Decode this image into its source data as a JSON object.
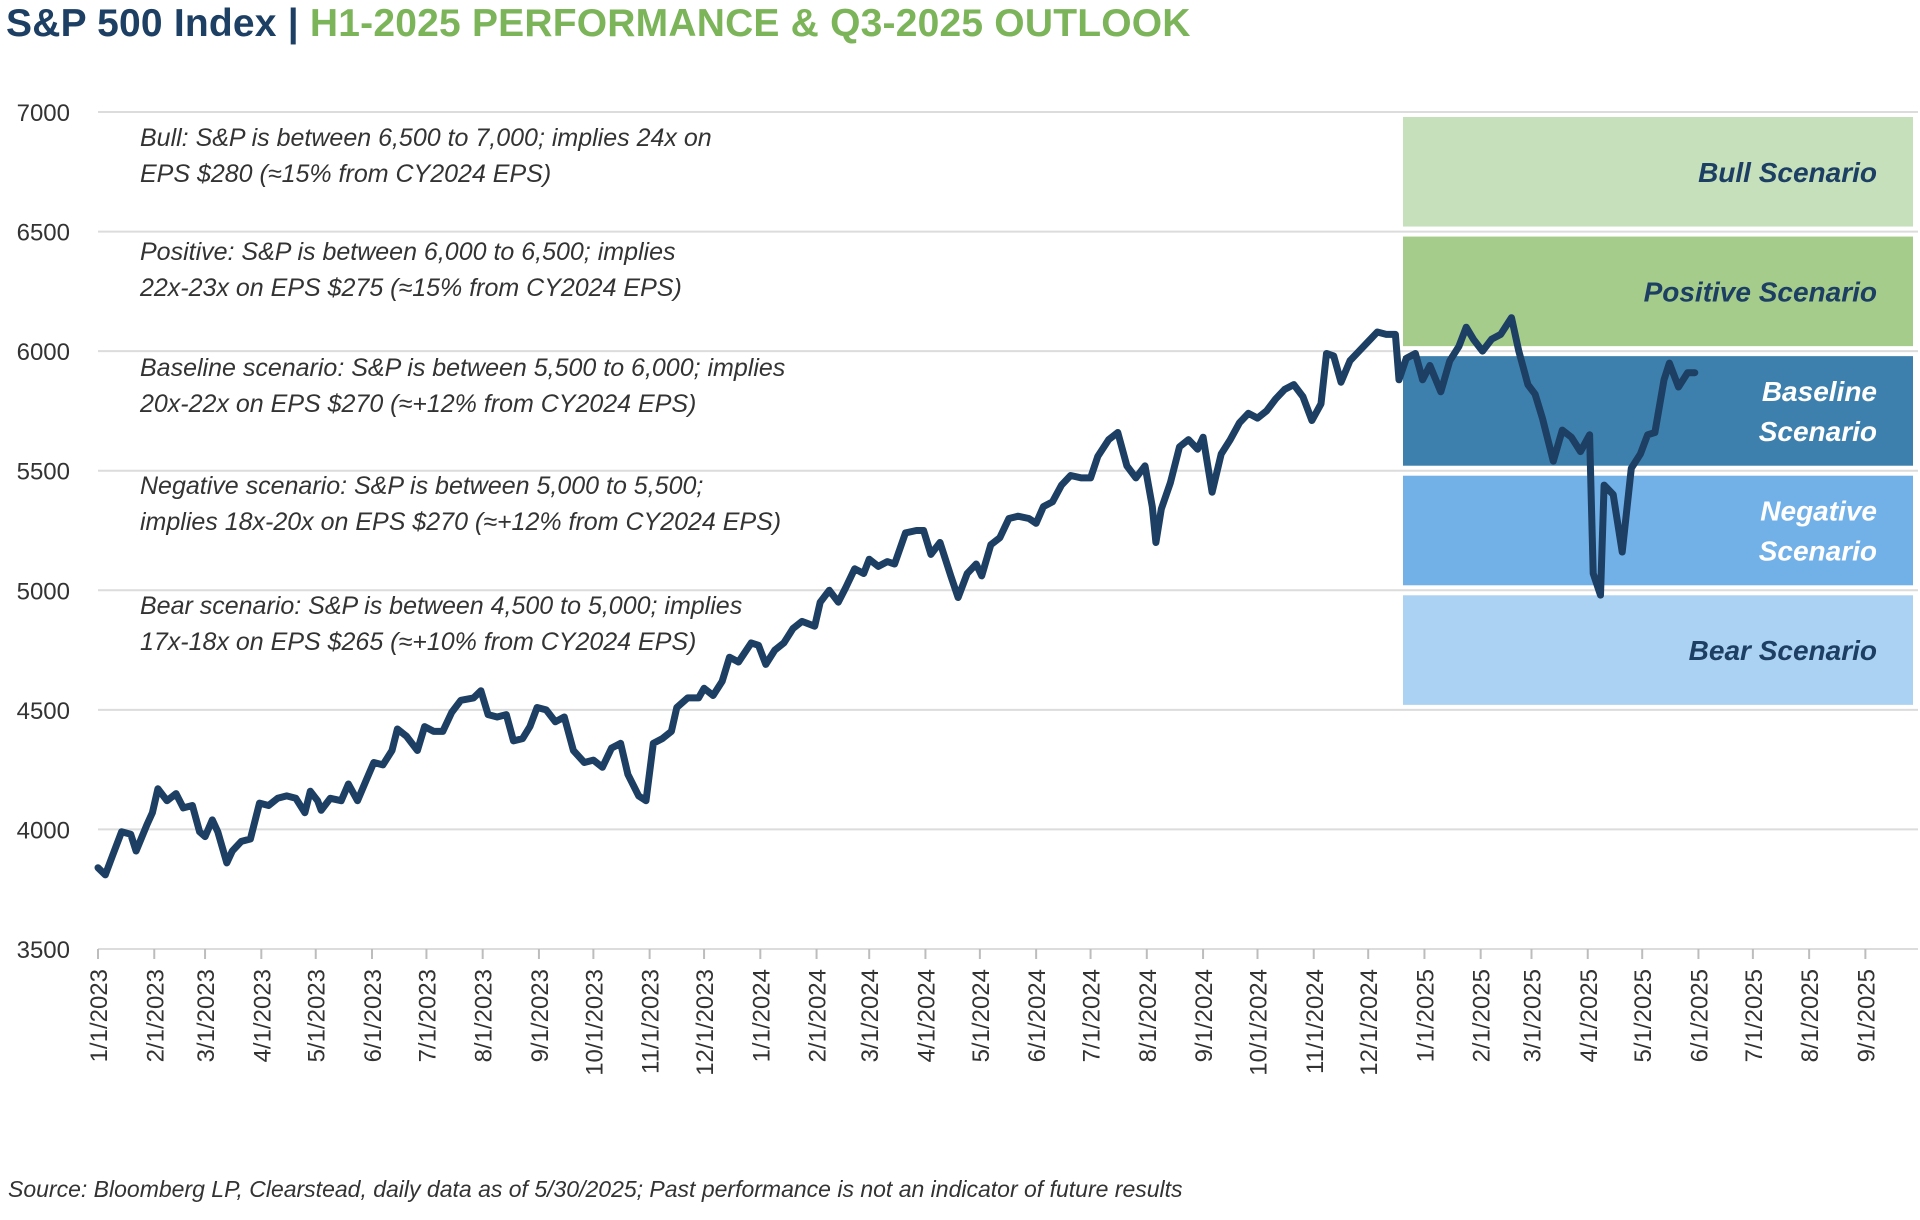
{
  "header": {
    "title_main": "S&P 500 Index",
    "title_sep": "|",
    "title_sub": "H1-2025 PERFORMANCE & Q3-2025 OUTLOOK"
  },
  "footer": {
    "source": "Source: Bloomberg LP, Clearstead, daily data as of 5/30/2025; Past performance is not an indicator of future results"
  },
  "colors": {
    "line": "#1c3f63",
    "grid": "#dcdcdc",
    "title_main": "#1c3f63",
    "title_sub": "#7cb45a"
  },
  "chart_data": {
    "type": "line",
    "title": "S&P 500 Index | H1-2025 PERFORMANCE & Q3-2025 OUTLOOK",
    "xlabel": "",
    "ylabel": "",
    "ylim": [
      3500,
      7000
    ],
    "yticks": [
      3500,
      4000,
      4500,
      5000,
      5500,
      6000,
      6500,
      7000
    ],
    "xlim": [
      "1/1/2023",
      "9/30/2025"
    ],
    "xticks": [
      "1/1/2023",
      "2/1/2023",
      "3/1/2023",
      "4/1/2023",
      "5/1/2023",
      "6/1/2023",
      "7/1/2023",
      "8/1/2023",
      "9/1/2023",
      "10/1/2023",
      "11/1/2023",
      "12/1/2023",
      "1/1/2024",
      "2/1/2024",
      "3/1/2024",
      "4/1/2024",
      "5/1/2024",
      "6/1/2024",
      "7/1/2024",
      "8/1/2024",
      "9/1/2024",
      "10/1/2024",
      "11/1/2024",
      "12/1/2024",
      "1/1/2025",
      "2/1/2025",
      "3/1/2025",
      "4/1/2025",
      "5/1/2025",
      "6/1/2025",
      "7/1/2025",
      "8/1/2025",
      "9/1/2025"
    ],
    "grid": true,
    "legend": "none",
    "series": [
      {
        "points": [
          [
            "1/1/2023",
            3840
          ],
          [
            "1/5/2023",
            3810
          ],
          [
            "1/9/2023",
            3890
          ],
          [
            "1/14/2023",
            3990
          ],
          [
            "1/19/2023",
            3980
          ],
          [
            "1/22/2023",
            3910
          ],
          [
            "1/28/2023",
            4020
          ],
          [
            "1/31/2023",
            4070
          ],
          [
            "2/3/2023",
            4170
          ],
          [
            "2/8/2023",
            4120
          ],
          [
            "2/13/2023",
            4150
          ],
          [
            "2/17/2023",
            4090
          ],
          [
            "2/22/2023",
            4100
          ],
          [
            "2/26/2023",
            3990
          ],
          [
            "3/1/2023",
            3970
          ],
          [
            "3/5/2023",
            4040
          ],
          [
            "3/8/2023",
            3990
          ],
          [
            "3/13/2023",
            3860
          ],
          [
            "3/16/2023",
            3910
          ],
          [
            "3/21/2023",
            3950
          ],
          [
            "3/26/2023",
            3960
          ],
          [
            "3/31/2023",
            4110
          ],
          [
            "4/5/2023",
            4100
          ],
          [
            "4/10/2023",
            4130
          ],
          [
            "4/15/2023",
            4140
          ],
          [
            "4/20/2023",
            4130
          ],
          [
            "4/25/2023",
            4070
          ],
          [
            "4/28/2023",
            4160
          ],
          [
            "5/2/2023",
            4120
          ],
          [
            "5/4/2023",
            4080
          ],
          [
            "5/9/2023",
            4130
          ],
          [
            "5/15/2023",
            4120
          ],
          [
            "5/19/2023",
            4190
          ],
          [
            "5/24/2023",
            4120
          ],
          [
            "5/29/2023",
            4210
          ],
          [
            "6/2/2023",
            4280
          ],
          [
            "6/7/2023",
            4270
          ],
          [
            "6/12/2023",
            4330
          ],
          [
            "6/15/2023",
            4420
          ],
          [
            "6/20/2023",
            4390
          ],
          [
            "6/26/2023",
            4330
          ],
          [
            "6/30/2023",
            4430
          ],
          [
            "7/5/2023",
            4410
          ],
          [
            "7/10/2023",
            4410
          ],
          [
            "7/15/2023",
            4490
          ],
          [
            "7/20/2023",
            4540
          ],
          [
            "7/27/2023",
            4550
          ],
          [
            "7/31/2023",
            4580
          ],
          [
            "8/4/2023",
            4480
          ],
          [
            "8/9/2023",
            4470
          ],
          [
            "8/14/2023",
            4480
          ],
          [
            "8/18/2023",
            4370
          ],
          [
            "8/23/2023",
            4380
          ],
          [
            "8/27/2023",
            4430
          ],
          [
            "8/31/2023",
            4510
          ],
          [
            "9/5/2023",
            4500
          ],
          [
            "9/10/2023",
            4450
          ],
          [
            "9/15/2023",
            4470
          ],
          [
            "9/20/2023",
            4330
          ],
          [
            "9/26/2023",
            4280
          ],
          [
            "10/1/2023",
            4290
          ],
          [
            "10/6/2023",
            4260
          ],
          [
            "10/11/2023",
            4340
          ],
          [
            "10/16/2023",
            4360
          ],
          [
            "10/20/2023",
            4230
          ],
          [
            "10/26/2023",
            4140
          ],
          [
            "10/30/2023",
            4120
          ],
          [
            "11/3/2023",
            4360
          ],
          [
            "11/8/2023",
            4380
          ],
          [
            "11/13/2023",
            4410
          ],
          [
            "11/16/2023",
            4510
          ],
          [
            "11/22/2023",
            4550
          ],
          [
            "11/28/2023",
            4550
          ],
          [
            "12/1/2023",
            4590
          ],
          [
            "12/6/2023",
            4560
          ],
          [
            "12/11/2023",
            4620
          ],
          [
            "12/15/2023",
            4720
          ],
          [
            "12/20/2023",
            4700
          ],
          [
            "12/27/2023",
            4780
          ],
          [
            "12/31/2023",
            4770
          ],
          [
            "1/4/2024",
            4690
          ],
          [
            "1/9/2024",
            4750
          ],
          [
            "1/14/2024",
            4780
          ],
          [
            "1/19/2024",
            4840
          ],
          [
            "1/24/2024",
            4870
          ],
          [
            "1/31/2024",
            4850
          ],
          [
            "2/3/2024",
            4950
          ],
          [
            "2/8/2024",
            5000
          ],
          [
            "2/13/2024",
            4950
          ],
          [
            "2/17/2024",
            5010
          ],
          [
            "2/22/2024",
            5090
          ],
          [
            "2/27/2024",
            5070
          ],
          [
            "3/1/2024",
            5130
          ],
          [
            "3/6/2024",
            5100
          ],
          [
            "3/11/2024",
            5120
          ],
          [
            "3/15/2024",
            5110
          ],
          [
            "3/21/2024",
            5240
          ],
          [
            "3/27/2024",
            5250
          ],
          [
            "3/31/2024",
            5250
          ],
          [
            "4/4/2024",
            5150
          ],
          [
            "4/9/2024",
            5200
          ],
          [
            "4/15/2024",
            5060
          ],
          [
            "4/19/2024",
            4970
          ],
          [
            "4/24/2024",
            5070
          ],
          [
            "4/29/2024",
            5110
          ],
          [
            "5/2/2024",
            5060
          ],
          [
            "5/7/2024",
            5190
          ],
          [
            "5/12/2024",
            5220
          ],
          [
            "5/17/2024",
            5300
          ],
          [
            "5/22/2024",
            5310
          ],
          [
            "5/28/2024",
            5300
          ],
          [
            "6/1/2024",
            5280
          ],
          [
            "6/5/2024",
            5350
          ],
          [
            "6/10/2024",
            5370
          ],
          [
            "6/15/2024",
            5440
          ],
          [
            "6/20/2024",
            5480
          ],
          [
            "6/26/2024",
            5470
          ],
          [
            "7/1/2024",
            5470
          ],
          [
            "7/5/2024",
            5560
          ],
          [
            "7/11/2024",
            5630
          ],
          [
            "7/16/2024",
            5660
          ],
          [
            "7/21/2024",
            5520
          ],
          [
            "7/26/2024",
            5470
          ],
          [
            "7/31/2024",
            5520
          ],
          [
            "8/4/2024",
            5350
          ],
          [
            "8/6/2024",
            5200
          ],
          [
            "8/9/2024",
            5340
          ],
          [
            "8/14/2024",
            5450
          ],
          [
            "8/19/2024",
            5600
          ],
          [
            "8/24/2024",
            5630
          ],
          [
            "8/29/2024",
            5590
          ],
          [
            "9/1/2024",
            5640
          ],
          [
            "9/6/2024",
            5410
          ],
          [
            "9/11/2024",
            5570
          ],
          [
            "9/16/2024",
            5630
          ],
          [
            "9/21/2024",
            5700
          ],
          [
            "9/26/2024",
            5740
          ],
          [
            "10/1/2024",
            5720
          ],
          [
            "10/6/2024",
            5750
          ],
          [
            "10/11/2024",
            5800
          ],
          [
            "10/16/2024",
            5840
          ],
          [
            "10/21/2024",
            5860
          ],
          [
            "10/26/2024",
            5810
          ],
          [
            "10/31/2024",
            5710
          ],
          [
            "11/5/2024",
            5780
          ],
          [
            "11/8/2024",
            5990
          ],
          [
            "11/12/2024",
            5980
          ],
          [
            "11/16/2024",
            5870
          ],
          [
            "11/21/2024",
            5960
          ],
          [
            "11/26/2024",
            6000
          ],
          [
            "12/1/2024",
            6040
          ],
          [
            "12/6/2024",
            6080
          ],
          [
            "12/11/2024",
            6070
          ],
          [
            "12/16/2024",
            6070
          ],
          [
            "12/18/2024",
            5880
          ],
          [
            "12/22/2024",
            5970
          ],
          [
            "12/27/2024",
            5990
          ],
          [
            "12/31/2024",
            5880
          ],
          [
            "1/4/2025",
            5940
          ],
          [
            "1/10/2025",
            5830
          ],
          [
            "1/15/2025",
            5960
          ],
          [
            "1/20/2025",
            6020
          ],
          [
            "1/24/2025",
            6100
          ],
          [
            "1/28/2025",
            6050
          ],
          [
            "2/2/2025",
            6000
          ],
          [
            "2/7/2025",
            6050
          ],
          [
            "2/12/2025",
            6070
          ],
          [
            "2/18/2025",
            6140
          ],
          [
            "2/22/2025",
            6000
          ],
          [
            "2/27/2025",
            5860
          ],
          [
            "3/3/2025",
            5820
          ],
          [
            "3/7/2025",
            5720
          ],
          [
            "3/13/2025",
            5540
          ],
          [
            "3/18/2025",
            5670
          ],
          [
            "3/23/2025",
            5640
          ],
          [
            "3/28/2025",
            5580
          ],
          [
            "4/2/2025",
            5650
          ],
          [
            "4/4/2025",
            5070
          ],
          [
            "4/8/2025",
            4980
          ],
          [
            "4/10/2025",
            5440
          ],
          [
            "4/15/2025",
            5400
          ],
          [
            "4/20/2025",
            5160
          ],
          [
            "4/25/2025",
            5510
          ],
          [
            "4/30/2025",
            5570
          ],
          [
            "5/4/2025",
            5650
          ],
          [
            "5/8/2025",
            5660
          ],
          [
            "5/13/2025",
            5880
          ],
          [
            "5/16/2025",
            5950
          ],
          [
            "5/21/2025",
            5850
          ],
          [
            "5/26/2025",
            5910
          ],
          [
            "5/30/2025",
            5910
          ]
        ]
      }
    ],
    "bands": [
      {
        "label": "Bull Scenario",
        "from": 6500,
        "to": 7000,
        "color": "#c6e0bb",
        "text_color": "#1c3f63"
      },
      {
        "label": "Positive Scenario",
        "from": 6000,
        "to": 6500,
        "color": "#a5cc8a",
        "text_color": "#1c3f63"
      },
      {
        "label": "Baseline Scenario",
        "label_lines": [
          "Baseline",
          "Scenario"
        ],
        "from": 5500,
        "to": 6000,
        "color": "#3e80ad",
        "text_color": "#ffffff"
      },
      {
        "label": "Negative Scenario",
        "label_lines": [
          "Negative",
          "Scenario"
        ],
        "from": 5000,
        "to": 5500,
        "color": "#72b1e8",
        "text_color": "#ffffff"
      },
      {
        "label": "Bear Scenario",
        "from": 4500,
        "to": 5000,
        "color": "#abd2f3",
        "text_color": "#1c3f63"
      }
    ],
    "annotations": [
      {
        "lines": [
          "Bull: S&P is between 6,500 to 7,000; implies 24x on",
          "EPS $280 (≈15% from CY2024 EPS)"
        ]
      },
      {
        "lines": [
          "Positive: S&P is between 6,000 to 6,500; implies",
          "22x-23x on EPS $275 (≈15% from CY2024 EPS)"
        ]
      },
      {
        "lines": [
          "Baseline scenario: S&P is between 5,500 to 6,000; implies",
          "20x-22x on EPS $270 (≈+12% from CY2024 EPS)"
        ]
      },
      {
        "lines": [
          "Negative scenario: S&P is between 5,000 to 5,500;",
          "implies 18x-20x on EPS $270 (≈+12% from CY2024 EPS)"
        ]
      },
      {
        "lines": [
          "Bear scenario: S&P is between 4,500 to 5,000; implies",
          "17x-18x on EPS $265 (≈+10% from CY2024 EPS)"
        ]
      }
    ]
  }
}
